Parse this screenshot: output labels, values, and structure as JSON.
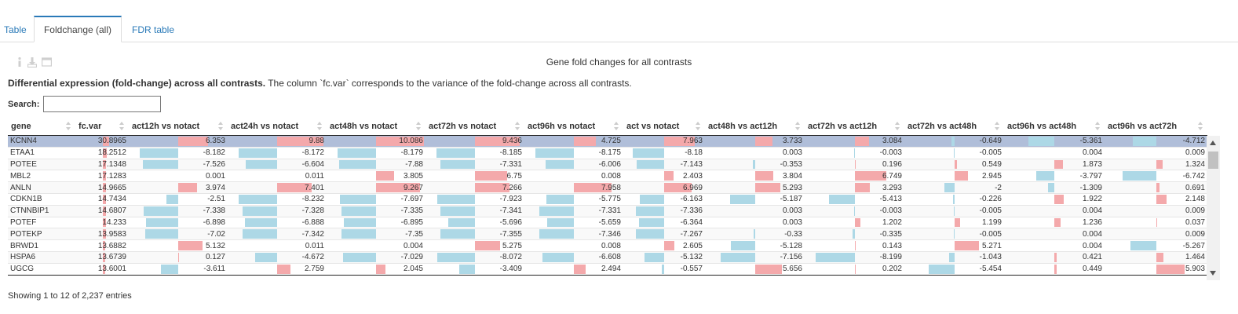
{
  "tabs": [
    "Table",
    "Foldchange (all)",
    "FDR table"
  ],
  "active_tab": 1,
  "toolbar": {
    "icons": [
      "info-icon",
      "download-icon",
      "window-icon"
    ]
  },
  "plot_title": "Gene fold changes for all contrasts",
  "caption": {
    "bold": "Differential expression (fold-change) across all contrasts.",
    "text": " The column `fc.var` corresponds to the variance of the fold-change across all contrasts."
  },
  "search": {
    "label": "Search:",
    "value": ""
  },
  "table": {
    "columns": [
      "gene",
      "fc.var",
      "act12h vs notact",
      "act24h vs notact",
      "act48h vs notact",
      "act72h vs notact",
      "act96h vs notact",
      "act vs notact",
      "act48h vs act12h",
      "act72h vs act12h",
      "act72h vs act48h",
      "act96h vs act48h",
      "act96h vs act72h"
    ],
    "rows": [
      [
        "KCNN4",
        "30.8965",
        "6.353",
        "9.88",
        "10.086",
        "9.436",
        "4.725",
        "7.963",
        "3.733",
        "3.084",
        "-0.649",
        "-5.361",
        "-4.712"
      ],
      [
        "ETAA1",
        "18.2512",
        "-8.182",
        "-8.172",
        "-8.179",
        "-8.185",
        "-8.175",
        "-8.18",
        "0.003",
        "-0.003",
        "-0.005",
        "0.004",
        "0.009"
      ],
      [
        "POTEE",
        "17.1348",
        "-7.526",
        "-6.604",
        "-7.88",
        "-7.331",
        "-6.006",
        "-7.143",
        "-0.353",
        "0.196",
        "0.549",
        "1.873",
        "1.324"
      ],
      [
        "MBL2",
        "17.1283",
        "0.001",
        "0.011",
        "3.805",
        "6.75",
        "0.008",
        "2.403",
        "3.804",
        "6.749",
        "2.945",
        "-3.797",
        "-6.742"
      ],
      [
        "ANLN",
        "14.9665",
        "3.974",
        "7.401",
        "9.267",
        "7.266",
        "7.958",
        "6.969",
        "5.293",
        "3.293",
        "-2",
        "-1.309",
        "0.691"
      ],
      [
        "CDKN1B",
        "14.7434",
        "-2.51",
        "-8.232",
        "-7.697",
        "-7.923",
        "-5.775",
        "-6.163",
        "-5.187",
        "-5.413",
        "-0.226",
        "1.922",
        "2.148"
      ],
      [
        "CTNNBIP1",
        "14.6807",
        "-7.338",
        "-7.328",
        "-7.335",
        "-7.341",
        "-7.331",
        "-7.336",
        "0.003",
        "-0.003",
        "-0.005",
        "0.004",
        "0.009"
      ],
      [
        "POTEF",
        "14.233",
        "-6.898",
        "-6.888",
        "-6.895",
        "-5.696",
        "-5.659",
        "-6.364",
        "0.003",
        "1.202",
        "1.199",
        "1.236",
        "0.037"
      ],
      [
        "POTEKP",
        "13.9583",
        "-7.02",
        "-7.342",
        "-7.35",
        "-7.355",
        "-7.346",
        "-7.267",
        "-0.33",
        "-0.335",
        "-0.005",
        "0.004",
        "0.009"
      ],
      [
        "BRWD1",
        "13.6882",
        "5.132",
        "0.011",
        "0.004",
        "5.275",
        "0.008",
        "2.605",
        "-5.128",
        "0.143",
        "5.271",
        "0.004",
        "-5.267"
      ],
      [
        "HSPA6",
        "13.6739",
        "0.127",
        "-4.672",
        "-7.029",
        "-8.072",
        "-6.608",
        "-5.132",
        "-7.156",
        "-8.199",
        "-1.043",
        "0.421",
        "1.464"
      ],
      [
        "UGCG",
        "13.6001",
        "-3.611",
        "2.759",
        "2.045",
        "-3.409",
        "2.494",
        "-0.557",
        "5.656",
        "0.202",
        "-5.454",
        "0.449",
        "5.903"
      ]
    ]
  },
  "bar_scale": {
    "fcvar_max": 32,
    "fc_max": 10.5
  },
  "colors": {
    "positive": "#f4a9ab",
    "negative": "#add8e6",
    "selected_row": "#b0bed9",
    "accent": "#2a7ab8"
  },
  "info": "Showing 1 to 12 of 2,237 entries"
}
